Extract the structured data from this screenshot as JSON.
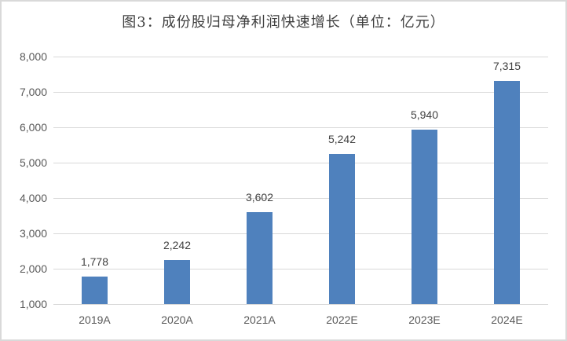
{
  "frame": {
    "background": "#ffffff",
    "border_color": "#d9d9d9"
  },
  "chart_data": {
    "type": "bar",
    "title": "图3：成份股归母净利润快速增长（单位：亿元）",
    "categories": [
      "2019A",
      "2020A",
      "2021A",
      "2022E",
      "2023E",
      "2024E"
    ],
    "values": [
      1778,
      2242,
      3602,
      5242,
      5940,
      7315
    ],
    "value_labels": [
      "1,778",
      "2,242",
      "3,602",
      "5,242",
      "5,940",
      "7,315"
    ],
    "xlabel": "",
    "ylabel": "",
    "y_axis": {
      "min": 1000,
      "max": 8000,
      "step": 1000,
      "tick_labels": [
        "8,000",
        "7,000",
        "6,000",
        "5,000",
        "4,000",
        "3,000",
        "2,000",
        "1,000"
      ]
    },
    "grid": true,
    "legend_position": "none",
    "colors": {
      "bar": "#4F81BD",
      "gridline": "#d9d9d9",
      "axis_text": "#595959",
      "value_label_text": "#404040",
      "title_text": "#3f3f3f"
    }
  }
}
